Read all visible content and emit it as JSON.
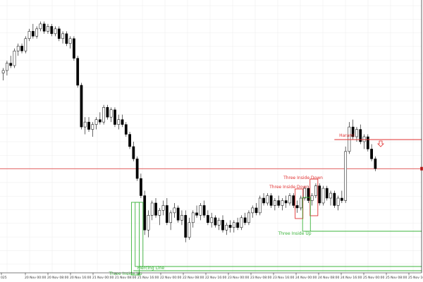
{
  "chart_data": {
    "type": "candlestick",
    "title": "",
    "xlabel": "",
    "ylabel": "",
    "grid": true,
    "colors": {
      "background": "#ffffff",
      "grid": "#ececec",
      "candle": "#000000",
      "bearish_pattern": "#e03030",
      "bullish_pattern": "#3cb43c"
    },
    "x_tick_labels": [
      "025",
      "20 Nov 00:00",
      "20 Nov 08:00",
      "20 Nov 16:00",
      "21 Nov 00:00",
      "21 Nov 08:00",
      "21 Nov 16:00",
      "22 Nov 00:00",
      "22 Nov 08:00",
      "22 Nov 16:00",
      "23 Nov 00:00",
      "23 Nov 08:00",
      "23 Nov 16:00",
      "24 Nov 00:00",
      "24 Nov 08:00",
      "24 Nov 16:00",
      "25 Nov 00:00",
      "25 Nov 08:00",
      "25 Nov 16:00"
    ],
    "ylim": [
      0,
      100
    ],
    "candles": [
      {
        "o": 76,
        "h": 78,
        "l": 73,
        "c": 77
      },
      {
        "o": 77,
        "h": 81,
        "l": 75,
        "c": 80
      },
      {
        "o": 80,
        "h": 83,
        "l": 78,
        "c": 79
      },
      {
        "o": 79,
        "h": 86,
        "l": 78,
        "c": 85
      },
      {
        "o": 85,
        "h": 88,
        "l": 83,
        "c": 87
      },
      {
        "o": 87,
        "h": 88,
        "l": 84,
        "c": 85
      },
      {
        "o": 85,
        "h": 91,
        "l": 84,
        "c": 90
      },
      {
        "o": 90,
        "h": 94,
        "l": 89,
        "c": 93
      },
      {
        "o": 93,
        "h": 96,
        "l": 90,
        "c": 91
      },
      {
        "o": 91,
        "h": 95,
        "l": 90,
        "c": 94
      },
      {
        "o": 94,
        "h": 97,
        "l": 93,
        "c": 96
      },
      {
        "o": 96,
        "h": 97,
        "l": 92,
        "c": 93
      },
      {
        "o": 93,
        "h": 96,
        "l": 92,
        "c": 95
      },
      {
        "o": 95,
        "h": 96,
        "l": 91,
        "c": 92
      },
      {
        "o": 92,
        "h": 95,
        "l": 91,
        "c": 94
      },
      {
        "o": 94,
        "h": 95,
        "l": 89,
        "c": 90
      },
      {
        "o": 90,
        "h": 93,
        "l": 88,
        "c": 92
      },
      {
        "o": 92,
        "h": 93,
        "l": 87,
        "c": 88
      },
      {
        "o": 88,
        "h": 91,
        "l": 86,
        "c": 90
      },
      {
        "o": 90,
        "h": 91,
        "l": 81,
        "c": 82
      },
      {
        "o": 82,
        "h": 83,
        "l": 70,
        "c": 71
      },
      {
        "o": 71,
        "h": 72,
        "l": 53,
        "c": 54
      },
      {
        "o": 54,
        "h": 58,
        "l": 51,
        "c": 56
      },
      {
        "o": 56,
        "h": 58,
        "l": 52,
        "c": 53
      },
      {
        "o": 53,
        "h": 56,
        "l": 50,
        "c": 55
      },
      {
        "o": 55,
        "h": 58,
        "l": 53,
        "c": 57
      },
      {
        "o": 57,
        "h": 60,
        "l": 55,
        "c": 56
      },
      {
        "o": 56,
        "h": 63,
        "l": 55,
        "c": 62
      },
      {
        "o": 62,
        "h": 63,
        "l": 57,
        "c": 58
      },
      {
        "o": 58,
        "h": 62,
        "l": 56,
        "c": 61
      },
      {
        "o": 61,
        "h": 62,
        "l": 54,
        "c": 55
      },
      {
        "o": 55,
        "h": 59,
        "l": 53,
        "c": 57
      },
      {
        "o": 57,
        "h": 59,
        "l": 54,
        "c": 55
      },
      {
        "o": 55,
        "h": 56,
        "l": 50,
        "c": 51
      },
      {
        "o": 51,
        "h": 52,
        "l": 45,
        "c": 46
      },
      {
        "o": 46,
        "h": 48,
        "l": 40,
        "c": 41
      },
      {
        "o": 41,
        "h": 42,
        "l": 32,
        "c": 33
      },
      {
        "o": 33,
        "h": 35,
        "l": 25,
        "c": 26
      },
      {
        "o": 26,
        "h": 28,
        "l": 10,
        "c": 12
      },
      {
        "o": 12,
        "h": 20,
        "l": 9,
        "c": 18
      },
      {
        "o": 18,
        "h": 24,
        "l": 16,
        "c": 23
      },
      {
        "o": 23,
        "h": 25,
        "l": 17,
        "c": 18
      },
      {
        "o": 18,
        "h": 21,
        "l": 14,
        "c": 20
      },
      {
        "o": 20,
        "h": 24,
        "l": 18,
        "c": 22
      },
      {
        "o": 22,
        "h": 25,
        "l": 14,
        "c": 15
      },
      {
        "o": 15,
        "h": 20,
        "l": 12,
        "c": 19
      },
      {
        "o": 19,
        "h": 23,
        "l": 17,
        "c": 21
      },
      {
        "o": 21,
        "h": 22,
        "l": 15,
        "c": 16
      },
      {
        "o": 16,
        "h": 20,
        "l": 14,
        "c": 18
      },
      {
        "o": 18,
        "h": 20,
        "l": 7,
        "c": 9
      },
      {
        "o": 9,
        "h": 17,
        "l": 8,
        "c": 15
      },
      {
        "o": 15,
        "h": 20,
        "l": 13,
        "c": 19
      },
      {
        "o": 19,
        "h": 22,
        "l": 17,
        "c": 18
      },
      {
        "o": 18,
        "h": 23,
        "l": 16,
        "c": 22
      },
      {
        "o": 22,
        "h": 24,
        "l": 17,
        "c": 18
      },
      {
        "o": 18,
        "h": 20,
        "l": 14,
        "c": 15
      },
      {
        "o": 15,
        "h": 19,
        "l": 13,
        "c": 17
      },
      {
        "o": 17,
        "h": 18,
        "l": 13,
        "c": 14
      },
      {
        "o": 14,
        "h": 17,
        "l": 12,
        "c": 16
      },
      {
        "o": 16,
        "h": 18,
        "l": 11,
        "c": 12
      },
      {
        "o": 12,
        "h": 15,
        "l": 10,
        "c": 14
      },
      {
        "o": 14,
        "h": 16,
        "l": 11,
        "c": 13
      },
      {
        "o": 13,
        "h": 16,
        "l": 11,
        "c": 15
      },
      {
        "o": 15,
        "h": 17,
        "l": 12,
        "c": 13
      },
      {
        "o": 13,
        "h": 18,
        "l": 12,
        "c": 17
      },
      {
        "o": 17,
        "h": 19,
        "l": 14,
        "c": 15
      },
      {
        "o": 15,
        "h": 20,
        "l": 14,
        "c": 19
      },
      {
        "o": 19,
        "h": 22,
        "l": 17,
        "c": 21
      },
      {
        "o": 21,
        "h": 23,
        "l": 18,
        "c": 19
      },
      {
        "o": 19,
        "h": 26,
        "l": 18,
        "c": 25
      },
      {
        "o": 25,
        "h": 27,
        "l": 22,
        "c": 23
      },
      {
        "o": 23,
        "h": 27,
        "l": 22,
        "c": 26
      },
      {
        "o": 26,
        "h": 27,
        "l": 21,
        "c": 22
      },
      {
        "o": 22,
        "h": 25,
        "l": 20,
        "c": 24
      },
      {
        "o": 24,
        "h": 26,
        "l": 21,
        "c": 22
      },
      {
        "o": 22,
        "h": 25,
        "l": 20,
        "c": 24
      },
      {
        "o": 24,
        "h": 26,
        "l": 21,
        "c": 23
      },
      {
        "o": 23,
        "h": 27,
        "l": 22,
        "c": 26
      },
      {
        "o": 26,
        "h": 27,
        "l": 21,
        "c": 22
      },
      {
        "o": 22,
        "h": 24,
        "l": 19,
        "c": 21
      },
      {
        "o": 21,
        "h": 26,
        "l": 20,
        "c": 25
      },
      {
        "o": 25,
        "h": 30,
        "l": 24,
        "c": 29
      },
      {
        "o": 29,
        "h": 30,
        "l": 23,
        "c": 24
      },
      {
        "o": 24,
        "h": 27,
        "l": 22,
        "c": 26
      },
      {
        "o": 26,
        "h": 31,
        "l": 25,
        "c": 30
      },
      {
        "o": 30,
        "h": 31,
        "l": 22,
        "c": 23
      },
      {
        "o": 23,
        "h": 30,
        "l": 22,
        "c": 29
      },
      {
        "o": 29,
        "h": 30,
        "l": 24,
        "c": 25
      },
      {
        "o": 25,
        "h": 28,
        "l": 22,
        "c": 27
      },
      {
        "o": 27,
        "h": 28,
        "l": 21,
        "c": 22
      },
      {
        "o": 22,
        "h": 26,
        "l": 20,
        "c": 25
      },
      {
        "o": 25,
        "h": 28,
        "l": 23,
        "c": 24
      },
      {
        "o": 24,
        "h": 46,
        "l": 23,
        "c": 44
      },
      {
        "o": 44,
        "h": 56,
        "l": 43,
        "c": 54
      },
      {
        "o": 54,
        "h": 57,
        "l": 49,
        "c": 50
      },
      {
        "o": 50,
        "h": 54,
        "l": 48,
        "c": 53
      },
      {
        "o": 53,
        "h": 55,
        "l": 47,
        "c": 48
      },
      {
        "o": 48,
        "h": 51,
        "l": 45,
        "c": 50
      },
      {
        "o": 50,
        "h": 51,
        "l": 44,
        "c": 45
      },
      {
        "o": 45,
        "h": 47,
        "l": 40,
        "c": 41
      },
      {
        "o": 41,
        "h": 42,
        "l": 36,
        "c": 37
      }
    ],
    "reference_lines": [
      {
        "y": 37,
        "color": "#e03030"
      }
    ],
    "patterns": [
      {
        "label": "Harami",
        "type": "bearish"
      },
      {
        "label": "Three Inside Down",
        "type": "bearish"
      },
      {
        "label": "Three Inside Down",
        "type": "bearish"
      },
      {
        "label": "Three Inside Up",
        "type": "bullish"
      },
      {
        "label": "Piercing Line",
        "type": "bullish"
      },
      {
        "label": "Three Inside Up",
        "type": "bullish"
      }
    ]
  }
}
